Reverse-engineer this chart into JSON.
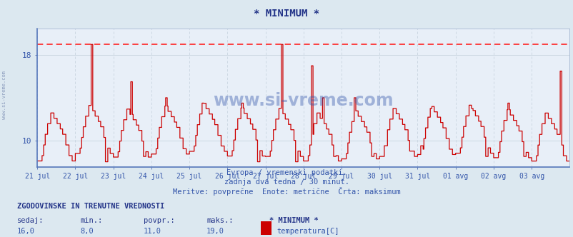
{
  "title": "* MINIMUM *",
  "bg_color": "#dce8f0",
  "plot_bg_color": "#e8eff8",
  "grid_color": "#c8d4e0",
  "line_color": "#cc0000",
  "max_line_color": "#ff2222",
  "ylim_min": 7.5,
  "ylim_max": 20.5,
  "yticks": [
    10,
    18
  ],
  "max_value": 19.0,
  "xlabel_dates": [
    "21 jul",
    "22 jul",
    "23 jul",
    "24 jul",
    "25 jul",
    "26 jul",
    "27 jul",
    "28 jul",
    "29 jul",
    "30 jul",
    "31 jul",
    "01 avg",
    "02 avg",
    "03 avg"
  ],
  "subtitle1": "Evropa / vremenski podatki.",
  "subtitle2": "zadnja dva tedna / 30 minut.",
  "subtitle3": "Meritve: povprečne  Enote: metrične  Črta: maksimum",
  "footer_title": "ZGODOVINSKE IN TRENUTNE VREDNOSTI",
  "footer_labels": [
    "sedaj:",
    "min.:",
    "povpr.:",
    "maks.:",
    "* MINIMUM *"
  ],
  "footer_values": [
    "16,0",
    "8,0",
    "11,0",
    "19,0"
  ],
  "footer_series": "temperatura[C]",
  "watermark": "www.si-vreme.com",
  "left_label": "www.si-vreme.com",
  "n_days": 14,
  "points_per_day": 48
}
